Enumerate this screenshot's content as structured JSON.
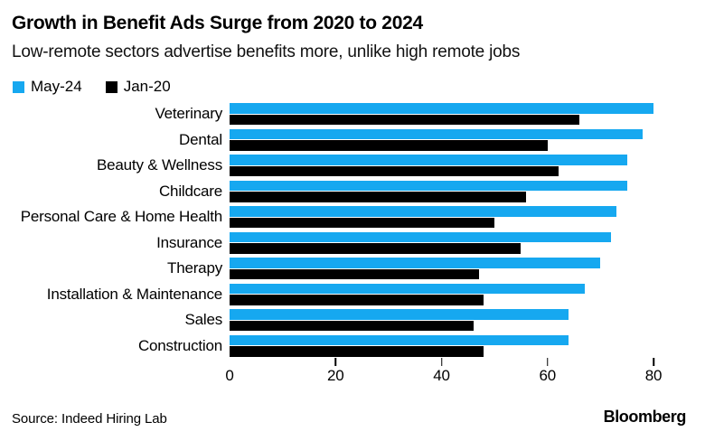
{
  "header": {
    "title": "Growth in Benefit Ads Surge from 2020 to 2024",
    "subtitle": "Low-remote sectors advertise benefits more, unlike high remote jobs"
  },
  "legend": {
    "items": [
      {
        "label": "May-24",
        "color": "#16A8F0"
      },
      {
        "label": "Jan-20",
        "color": "#000000"
      }
    ]
  },
  "chart_data": {
    "type": "bar",
    "orientation": "horizontal",
    "title": "Growth in Benefit Ads Surge from 2020 to 2024",
    "subtitle": "Low-remote sectors advertise benefits more, unlike high remote jobs",
    "categories": [
      "Veterinary",
      "Dental",
      "Beauty & Wellness",
      "Childcare",
      "Personal Care & Home Health",
      "Insurance",
      "Therapy",
      "Installation & Maintenance",
      "Sales",
      "Construction"
    ],
    "series": [
      {
        "name": "May-24",
        "color": "#16A8F0",
        "values": [
          80,
          78,
          75,
          75,
          73,
          72,
          70,
          67,
          64,
          64
        ]
      },
      {
        "name": "Jan-20",
        "color": "#000000",
        "values": [
          66,
          60,
          62,
          56,
          50,
          55,
          47,
          48,
          46,
          48
        ]
      }
    ],
    "xticks": [
      0,
      20,
      40,
      60,
      80
    ],
    "xlim": [
      0,
      88
    ],
    "xlabel": "",
    "ylabel": "",
    "grid": false,
    "legend_position": "top-left"
  },
  "footer": {
    "source": "Source: Indeed Hiring Lab",
    "brand": "Bloomberg"
  }
}
